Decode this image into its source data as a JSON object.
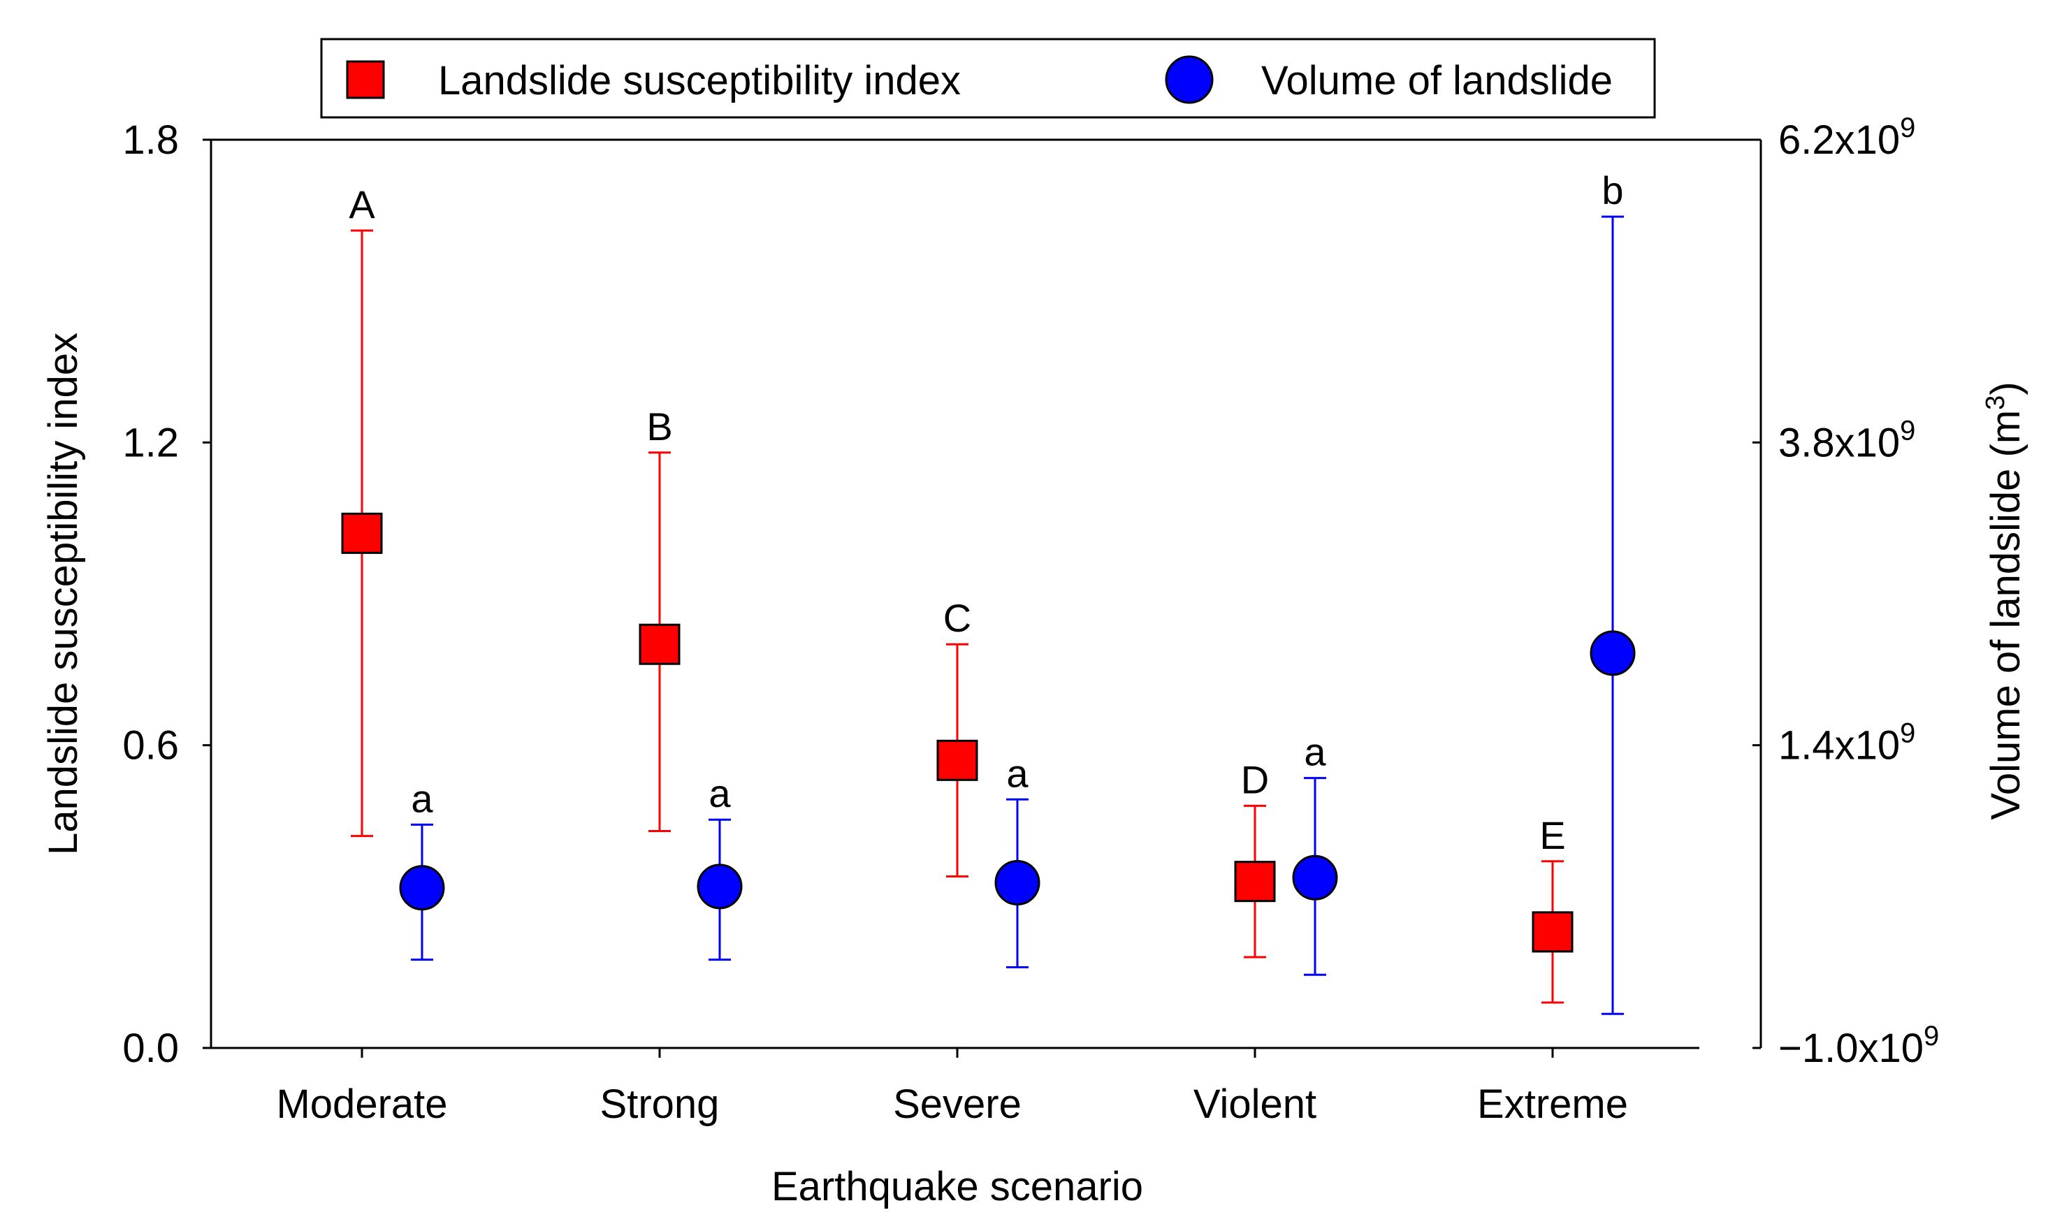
{
  "chart_data": {
    "type": "scatter",
    "title": "",
    "xlabel": "Earthquake scenario",
    "ylabel_left": "Landslide susceptibility index",
    "ylabel_right": "Volume of landslide (m",
    "ylabel_right_superscript": "3",
    "ylabel_right_close": ")",
    "categories": [
      "Moderate",
      "Strong",
      "Severe",
      "Violent",
      "Extreme"
    ],
    "ylim_left": [
      0,
      1.8
    ],
    "yticks_left": [
      "0.0",
      "0.6",
      "1.2",
      "1.8"
    ],
    "ylim_right": [
      -1000000000.0,
      6200000000.0
    ],
    "yticks_right": [
      {
        "value": -1000000000.0,
        "mantissa": "−1.0x10",
        "exp": "9"
      },
      {
        "value": 1400000000.0,
        "mantissa": "1.4x10",
        "exp": "9"
      },
      {
        "value": 3800000000.0,
        "mantissa": "3.8x10",
        "exp": "9"
      },
      {
        "value": 6200000000.0,
        "mantissa": "6.2x10",
        "exp": "9"
      }
    ],
    "legend_position": "top-center",
    "series": [
      {
        "name": "Landslide susceptibility index",
        "axis": "left",
        "marker": "square",
        "color": "#ff0000",
        "values": [
          1.02,
          0.8,
          0.57,
          0.33,
          0.23
        ],
        "err_low": [
          0.42,
          0.43,
          0.34,
          0.18,
          0.09
        ],
        "err_high": [
          1.62,
          1.18,
          0.8,
          0.48,
          0.37
        ],
        "labels": [
          "A",
          "B",
          "C",
          "D",
          "E"
        ]
      },
      {
        "name": "Volume of landslide",
        "axis": "right",
        "marker": "circle",
        "color": "#0000ff",
        "values": [
          270000000.0,
          280000000.0,
          310000000.0,
          350000000.0,
          2130000000.0
        ],
        "err_low": [
          -300000000.0,
          -300000000.0,
          -360000000.0,
          -420000000.0,
          -730000000.0
        ],
        "err_high": [
          770000000.0,
          810000000.0,
          970000000.0,
          1140000000.0,
          5590000000.0
        ],
        "labels": [
          "a",
          "a",
          "a",
          "a",
          "b"
        ]
      }
    ]
  }
}
